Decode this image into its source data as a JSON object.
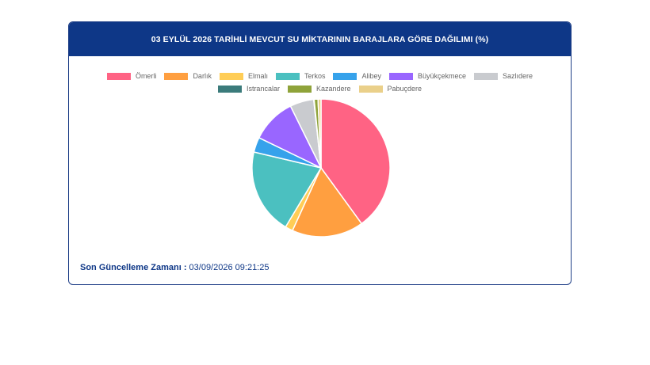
{
  "header": {
    "title": "03 EYLÜL 2026 TARİHLİ MEVCUT SU MİKTARININ BARAJLARA GÖRE DAĞILIMI (%)"
  },
  "footer": {
    "label": "Son Güncelleme Zamanı",
    "separator": " : ",
    "value": "03/09/2026 09:21:25"
  },
  "chart_data": {
    "type": "pie",
    "categories": [
      "Ömerli",
      "Darlık",
      "Elmalı",
      "Terkos",
      "Alibey",
      "Büyükçekmece",
      "Sazlıdere",
      "Istrancalar",
      "Kazandere",
      "Pabuçdere"
    ],
    "values": [
      40.0,
      16.8,
      1.8,
      20.1,
      3.5,
      10.5,
      5.6,
      0.1,
      0.9,
      0.7
    ],
    "colors": [
      "#ff6384",
      "#ff9f40",
      "#ffcd56",
      "#4bc0c0",
      "#36a2eb",
      "#9966ff",
      "#c9cbcf",
      "#3b7b7b",
      "#8fa33a",
      "#ead08a"
    ],
    "start_angle_deg": 0,
    "direction": "clockwise",
    "legend": "top"
  }
}
